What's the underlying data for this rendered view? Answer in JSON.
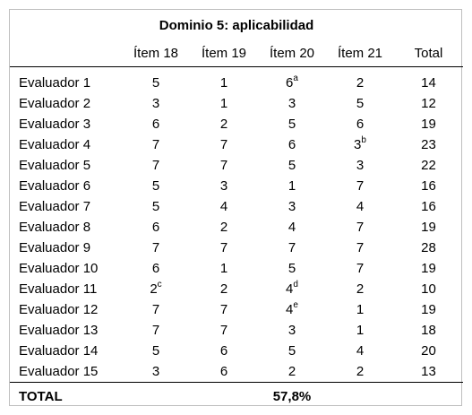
{
  "table": {
    "title": "Dominio 5: aplicabilidad",
    "headers": [
      "Ítem 18",
      "Ítem 19",
      "Ítem 20",
      "Ítem 21",
      "Total"
    ],
    "rows": [
      {
        "label": "Evaluador 1",
        "cells": [
          {
            "v": "5"
          },
          {
            "v": "1"
          },
          {
            "v": "6",
            "sup": "a"
          },
          {
            "v": "2"
          },
          {
            "v": "14"
          }
        ]
      },
      {
        "label": "Evaluador 2",
        "cells": [
          {
            "v": "3"
          },
          {
            "v": "1"
          },
          {
            "v": "3"
          },
          {
            "v": "5"
          },
          {
            "v": "12"
          }
        ]
      },
      {
        "label": "Evaluador 3",
        "cells": [
          {
            "v": "6"
          },
          {
            "v": "2"
          },
          {
            "v": "5"
          },
          {
            "v": "6"
          },
          {
            "v": "19"
          }
        ]
      },
      {
        "label": "Evaluador 4",
        "cells": [
          {
            "v": "7"
          },
          {
            "v": "7"
          },
          {
            "v": "6"
          },
          {
            "v": "3",
            "sup": "b"
          },
          {
            "v": "23"
          }
        ]
      },
      {
        "label": "Evaluador 5",
        "cells": [
          {
            "v": "7"
          },
          {
            "v": "7"
          },
          {
            "v": "5"
          },
          {
            "v": "3"
          },
          {
            "v": "22"
          }
        ]
      },
      {
        "label": "Evaluador 6",
        "cells": [
          {
            "v": "5"
          },
          {
            "v": "3"
          },
          {
            "v": "1"
          },
          {
            "v": "7"
          },
          {
            "v": "16"
          }
        ]
      },
      {
        "label": "Evaluador 7",
        "cells": [
          {
            "v": "5"
          },
          {
            "v": "4"
          },
          {
            "v": "3"
          },
          {
            "v": "4"
          },
          {
            "v": "16"
          }
        ]
      },
      {
        "label": "Evaluador 8",
        "cells": [
          {
            "v": "6"
          },
          {
            "v": "2"
          },
          {
            "v": "4"
          },
          {
            "v": "7"
          },
          {
            "v": "19"
          }
        ]
      },
      {
        "label": "Evaluador 9",
        "cells": [
          {
            "v": "7"
          },
          {
            "v": "7"
          },
          {
            "v": "7"
          },
          {
            "v": "7"
          },
          {
            "v": "28"
          }
        ]
      },
      {
        "label": "Evaluador 10",
        "cells": [
          {
            "v": "6"
          },
          {
            "v": "1"
          },
          {
            "v": "5"
          },
          {
            "v": "7"
          },
          {
            "v": "19"
          }
        ]
      },
      {
        "label": "Evaluador 11",
        "cells": [
          {
            "v": "2",
            "sup": "c"
          },
          {
            "v": "2"
          },
          {
            "v": "4",
            "sup": "d"
          },
          {
            "v": "2"
          },
          {
            "v": "10"
          }
        ]
      },
      {
        "label": "Evaluador 12",
        "cells": [
          {
            "v": "7"
          },
          {
            "v": "7"
          },
          {
            "v": "4",
            "sup": "e"
          },
          {
            "v": "1"
          },
          {
            "v": "19"
          }
        ]
      },
      {
        "label": "Evaluador 13",
        "cells": [
          {
            "v": "7"
          },
          {
            "v": "7"
          },
          {
            "v": "3"
          },
          {
            "v": "1"
          },
          {
            "v": "18"
          }
        ]
      },
      {
        "label": "Evaluador 14",
        "cells": [
          {
            "v": "5"
          },
          {
            "v": "6"
          },
          {
            "v": "5"
          },
          {
            "v": "4"
          },
          {
            "v": "20"
          }
        ]
      },
      {
        "label": "Evaluador 15",
        "cells": [
          {
            "v": "3"
          },
          {
            "v": "6"
          },
          {
            "v": "2"
          },
          {
            "v": "2"
          },
          {
            "v": "13"
          }
        ]
      }
    ],
    "total_label": "TOTAL",
    "total_value": "57,8%"
  }
}
